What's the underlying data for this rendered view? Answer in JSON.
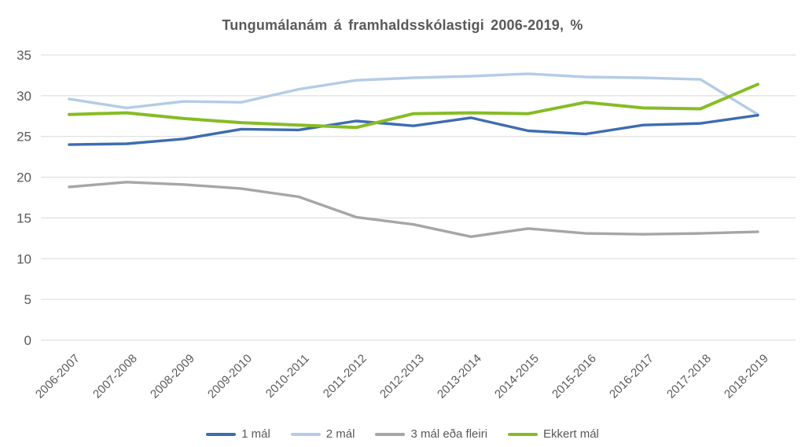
{
  "title": "Tungumálanám á framhaldsskólastigi 2006-2019, %",
  "colors": {
    "text": "#595959",
    "gridline": "#d9d9d9",
    "background": "#ffffff",
    "series_1_mal": "#3e6cb0",
    "series_2_mal": "#b3cce7",
    "series_3_mal": "#a6a6a6",
    "series_ekkert_mal": "#86bc25"
  },
  "y_axis": {
    "tick_labels": [
      "0",
      "5",
      "10",
      "15",
      "20",
      "25",
      "30",
      "35"
    ]
  },
  "chart_data": {
    "type": "line",
    "title": "Tungumálanám á framhaldsskólastigi 2006-2019, %",
    "categories": [
      "2006-2007",
      "2007-2008",
      "2008-2009",
      "2009-2010",
      "2010-2011",
      "2011-2012",
      "2012-2013",
      "2013-2014",
      "2014-2015",
      "2015-2016",
      "2016-2017",
      "2017-2018",
      "2018-2019"
    ],
    "series": [
      {
        "name": "1 mál",
        "color": "#3e6cb0",
        "values": [
          24.0,
          24.1,
          24.7,
          25.9,
          25.8,
          26.9,
          26.3,
          27.3,
          25.7,
          25.3,
          26.4,
          26.6,
          27.6
        ]
      },
      {
        "name": "2 mál",
        "color": "#b3cce7",
        "values": [
          29.6,
          28.5,
          29.3,
          29.2,
          30.8,
          31.9,
          32.2,
          32.4,
          32.7,
          32.3,
          32.2,
          32.0,
          27.7
        ]
      },
      {
        "name": "3 mál eða fleiri",
        "color": "#a6a6a6",
        "values": [
          18.8,
          19.4,
          19.1,
          18.6,
          17.6,
          15.1,
          14.2,
          12.7,
          13.7,
          13.1,
          13.0,
          13.1,
          13.3
        ]
      },
      {
        "name": "Ekkert mál",
        "color": "#86bc25",
        "values": [
          27.7,
          27.9,
          27.2,
          26.7,
          26.4,
          26.1,
          27.8,
          27.9,
          27.8,
          29.2,
          28.5,
          28.4,
          31.4
        ]
      }
    ],
    "xlabel": "",
    "ylabel": "",
    "ylim": [
      0,
      35
    ],
    "ytick_step": 5,
    "grid": "horizontal",
    "legend_position": "bottom",
    "x_label_rotation_deg": 45
  }
}
